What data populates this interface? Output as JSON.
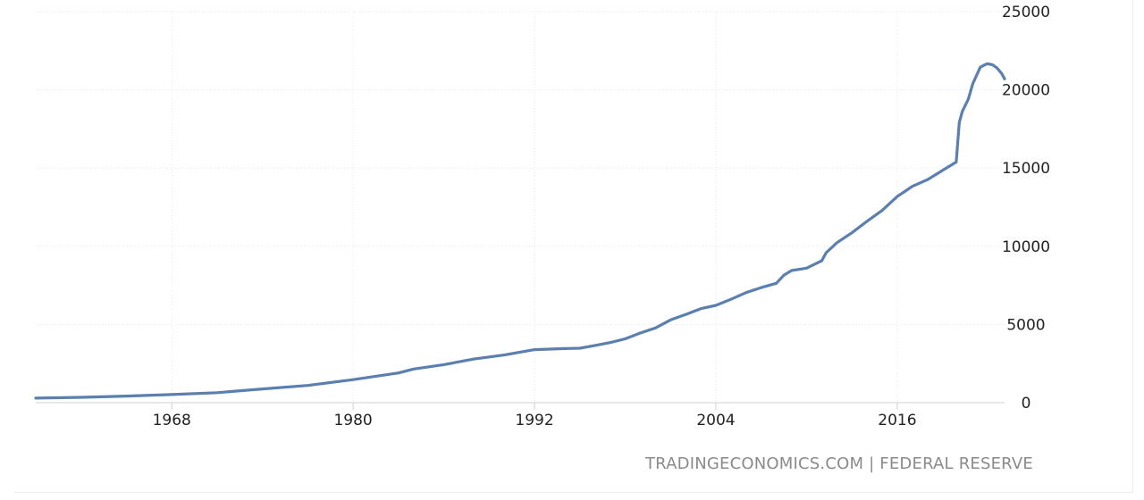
{
  "chart_data": {
    "type": "line",
    "title": "",
    "xlabel": "",
    "ylabel": "",
    "xlim": [
      1959,
      2023.1
    ],
    "ylim": [
      0,
      25000
    ],
    "x_ticks": [
      1968,
      1980,
      1992,
      2004,
      2016
    ],
    "y_ticks": [
      0,
      5000,
      10000,
      15000,
      20000,
      25000
    ],
    "grid": true,
    "legend": "none",
    "line_color": "#5b7faf",
    "series": [
      {
        "x": [
          1959,
          1962,
          1965,
          1968,
          1971,
          1974,
          1977,
          1980,
          1983,
          1984,
          1986,
          1988,
          1990,
          1992,
          1994,
          1995,
          1996,
          1997,
          1998,
          1999,
          2000,
          2001,
          2002,
          2003,
          2004,
          2005,
          2006,
          2007,
          2008,
          2008.5,
          2009,
          2010,
          2011,
          2011.3,
          2012,
          2013,
          2014,
          2015,
          2016,
          2017,
          2018,
          2019,
          2019.9,
          2020.1,
          2020.3,
          2020.7,
          2021,
          2021.5,
          2021.9,
          2022,
          2022.3,
          2022.6,
          2022.9,
          2023.1
        ],
        "y": [
          290,
          340,
          420,
          520,
          640,
          880,
          1100,
          1470,
          1900,
          2150,
          2430,
          2790,
          3050,
          3390,
          3460,
          3480,
          3660,
          3840,
          4080,
          4450,
          4780,
          5290,
          5640,
          6010,
          6220,
          6610,
          7040,
          7360,
          7630,
          8150,
          8450,
          8600,
          9070,
          9590,
          10220,
          10860,
          11600,
          12290,
          13180,
          13830,
          14260,
          14850,
          15380,
          17900,
          18600,
          19400,
          20400,
          21450,
          21650,
          21660,
          21600,
          21400,
          21050,
          20700
        ]
      }
    ],
    "source_text": "TRADINGECONOMICS.COM | FEDERAL RESERVE"
  }
}
